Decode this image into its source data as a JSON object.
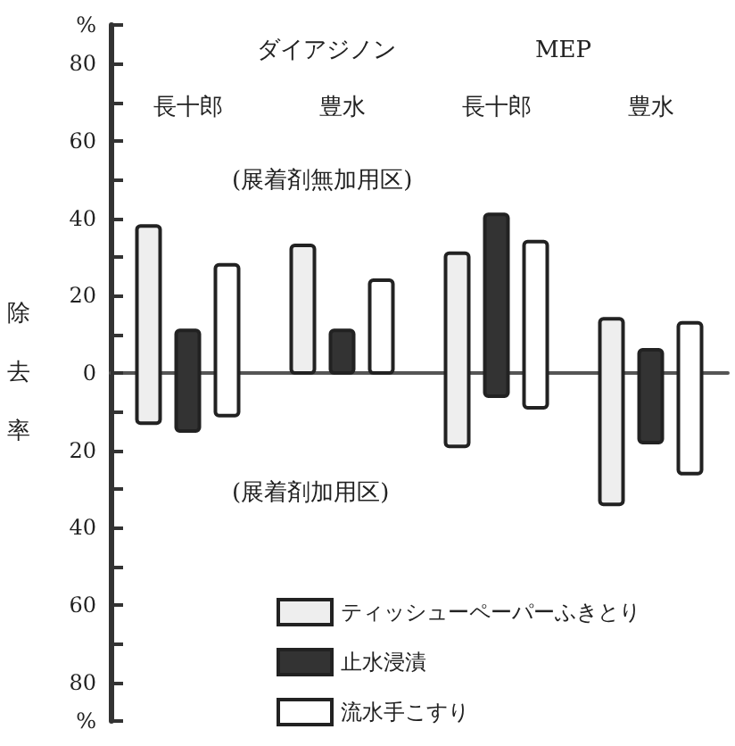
{
  "chart_data": {
    "type": "bar",
    "ylabel": "除去率",
    "categories": [
      "長十郎",
      "豊水",
      "長十郎",
      "豊水"
    ],
    "annotations": [
      "ダイアジノン",
      "MEP",
      "(展着剤無加用区)",
      "(展着剤加用区)"
    ],
    "series": [
      {
        "name": "ティッシューペーパーふきとり",
        "color": "#eeeeee",
        "base": [
          -13,
          0,
          -19,
          -34
        ],
        "values": [
          51,
          33,
          50,
          48
        ]
      },
      {
        "name": "止水浸漬",
        "color": "#333333",
        "base": [
          -15,
          0,
          -6,
          -18
        ],
        "values": [
          26,
          11,
          47,
          24
        ]
      },
      {
        "name": "流水手こすり",
        "color": "#ffffff",
        "base": [
          -11,
          0,
          -9,
          -26
        ],
        "values": [
          39,
          24,
          43,
          39
        ]
      }
    ],
    "ylim": [
      -90,
      90
    ],
    "yticks": [
      {
        "value": -90,
        "label": "%"
      },
      {
        "value": -80,
        "label": "80"
      },
      {
        "value": -70,
        "label": null
      },
      {
        "value": -60,
        "label": "60"
      },
      {
        "value": -50,
        "label": null
      },
      {
        "value": -40,
        "label": "40"
      },
      {
        "value": -30,
        "label": null
      },
      {
        "value": -20,
        "label": "20"
      },
      {
        "value": -10,
        "label": null
      },
      0,
      {
        "value": 10,
        "label": null
      },
      {
        "value": 20,
        "label": "20"
      },
      {
        "value": 30,
        "label": null
      },
      {
        "value": 40,
        "label": "40"
      },
      {
        "value": 50,
        "label": null
      },
      {
        "value": 60,
        "label": "60"
      },
      {
        "value": 70,
        "label": null
      },
      {
        "value": 80,
        "label": "80"
      },
      {
        "value": 90,
        "label": "%"
      }
    ],
    "legend": "bottom"
  }
}
